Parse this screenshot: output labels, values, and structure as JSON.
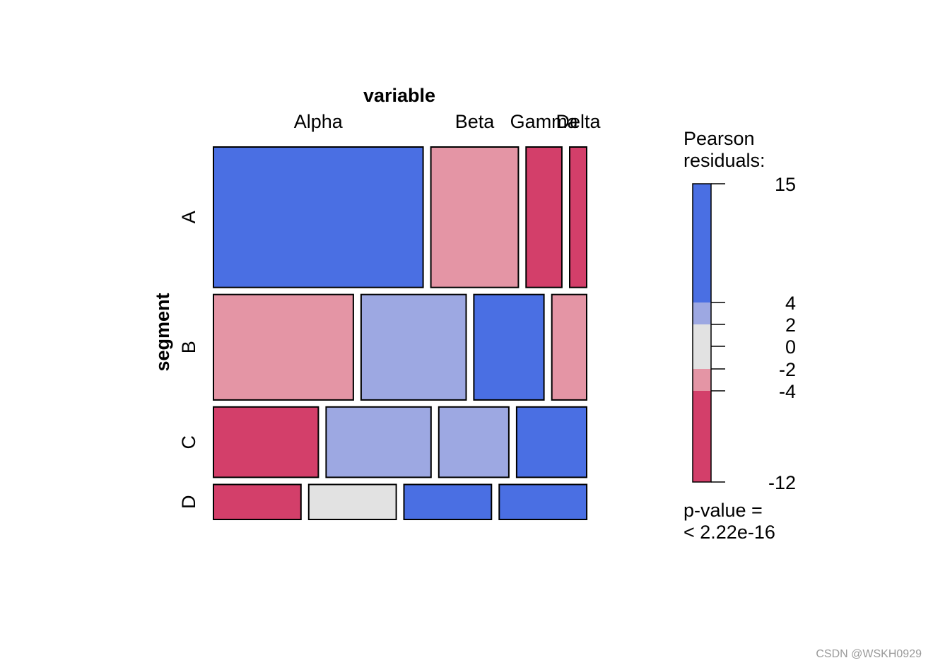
{
  "chart_data": {
    "type": "mosaic",
    "title": "",
    "xlabel": "variable",
    "ylabel": "segment",
    "column_labels": [
      "Alpha",
      "Beta",
      "Gamma",
      "Delta"
    ],
    "row_labels": [
      "A",
      "B",
      "C",
      "D"
    ],
    "row_heights": [
      0.385,
      0.289,
      0.193,
      0.096
    ],
    "rows": [
      {
        "name": "A",
        "widths": [
          0.568,
          0.237,
          0.097,
          0.046
        ],
        "residual_bands": [
          "blue",
          "light-red",
          "red",
          "red"
        ]
      },
      {
        "name": "B",
        "widths": [
          0.377,
          0.283,
          0.189,
          0.094
        ],
        "residual_bands": [
          "light-red",
          "light-blue",
          "blue",
          "light-red"
        ]
      },
      {
        "name": "C",
        "widths": [
          0.283,
          0.283,
          0.189,
          0.189
        ],
        "residual_bands": [
          "red",
          "light-blue",
          "light-blue",
          "blue"
        ]
      },
      {
        "name": "D",
        "widths": [
          0.236,
          0.236,
          0.236,
          0.236
        ],
        "residual_bands": [
          "red",
          "neutral",
          "blue",
          "blue"
        ]
      }
    ],
    "legend": {
      "title_line1": "Pearson",
      "title_line2": "residuals:",
      "ticks": [
        "15",
        "4",
        "2",
        "0",
        "-2",
        "-4",
        "-12"
      ],
      "tick_values": [
        15,
        4,
        2,
        0,
        -2,
        -4,
        -12
      ],
      "range": [
        -12,
        15
      ],
      "bands": [
        {
          "from": 4,
          "to": 15,
          "color": "blue"
        },
        {
          "from": 2,
          "to": 4,
          "color": "light-blue"
        },
        {
          "from": -2,
          "to": 2,
          "color": "neutral"
        },
        {
          "from": -4,
          "to": -2,
          "color": "light-red"
        },
        {
          "from": -12,
          "to": -4,
          "color": "red"
        }
      ],
      "pvalue_line1": "p-value =",
      "pvalue_line2": "< 2.22e-16"
    },
    "colors": {
      "blue": "#4A6FE3",
      "light-blue": "#9DA8E2",
      "neutral": "#E2E2E2",
      "light-red": "#E495A5",
      "red": "#D33F6A",
      "border": "#000000"
    }
  },
  "watermark": "CSDN @WSKH0929"
}
